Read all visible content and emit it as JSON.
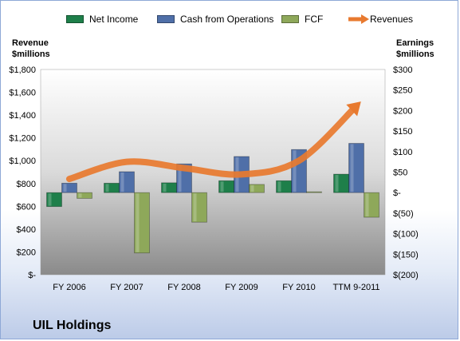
{
  "chart_data": {
    "type": "bar",
    "title": "",
    "subtitle": "UIL Holdings",
    "categories": [
      "FY 2006",
      "FY 2007",
      "FY 2008",
      "FY 2009",
      "FY 2010",
      "TTM 9-2011"
    ],
    "left_axis": {
      "label_line1": "Revenue",
      "label_line2": "$millions",
      "ylim": [
        0,
        1800
      ],
      "ticks": [
        0,
        200,
        400,
        600,
        800,
        1000,
        1200,
        1400,
        1600,
        1800
      ],
      "tick_labels": [
        "$-",
        "$200",
        "$400",
        "$600",
        "$800",
        "$1,000",
        "$1,200",
        "$1,400",
        "$1,600",
        "$1,800"
      ]
    },
    "right_axis": {
      "label_line1": "Earnings",
      "label_line2": "$millions",
      "ylim": [
        -200,
        300
      ],
      "ticks": [
        -200,
        -150,
        -100,
        -50,
        0,
        50,
        100,
        150,
        200,
        250,
        300
      ],
      "tick_labels": [
        "$(200)",
        "$(150)",
        "$(100)",
        "$(50)",
        "$-",
        "$50",
        "$100",
        "$150",
        "$200",
        "$250",
        "$300"
      ]
    },
    "series": [
      {
        "name": "Net Income",
        "type": "bar",
        "axis": "right",
        "color": "#1e7f4a",
        "values": [
          -34,
          23,
          24,
          29,
          29,
          45
        ]
      },
      {
        "name": "Cash from Operations",
        "type": "bar",
        "axis": "right",
        "color": "#4f6fa8",
        "values": [
          23,
          51,
          70,
          88,
          105,
          120
        ]
      },
      {
        "name": "FCF",
        "type": "bar",
        "axis": "right",
        "color": "#8ea85a",
        "values": [
          -14,
          -147,
          -72,
          20,
          2,
          -60
        ]
      },
      {
        "name": "Revenues",
        "type": "line",
        "axis": "left",
        "color": "#e87a2f",
        "values": [
          840,
          990,
          935,
          880,
          1000,
          1480
        ]
      }
    ],
    "grid": false,
    "legend_position": "top"
  }
}
